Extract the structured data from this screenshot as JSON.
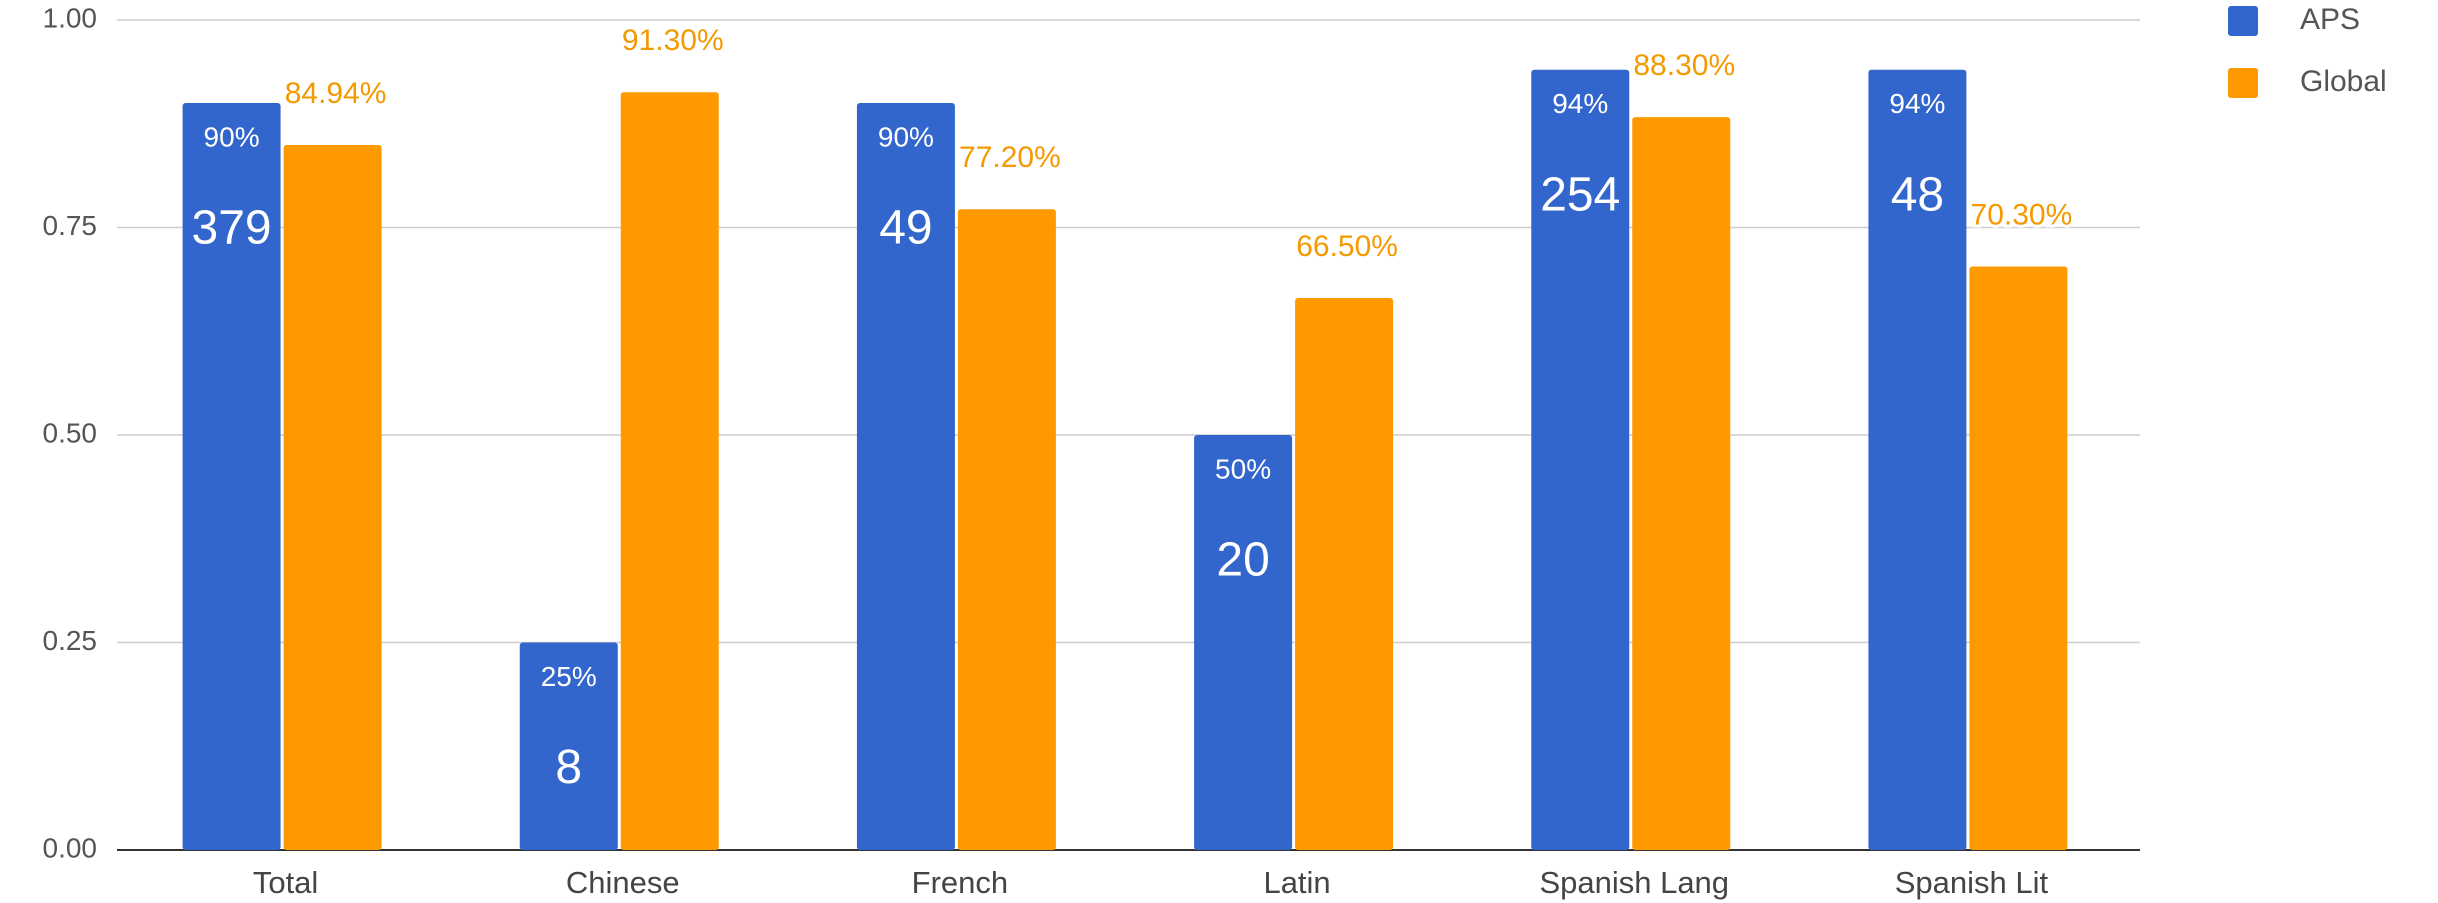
{
  "chart_data": {
    "type": "bar",
    "categories": [
      "Total",
      "Chinese",
      "French",
      "Latin",
      "Spanish Lang",
      "Spanish Lit"
    ],
    "series": [
      {
        "name": "APS",
        "color": "#3366cc",
        "values": [
          0.9,
          0.25,
          0.9,
          0.5,
          0.94,
          0.94
        ],
        "value_labels": [
          "90%",
          "25%",
          "90%",
          "50%",
          "94%",
          "94%"
        ],
        "counts": [
          379,
          8,
          49,
          20,
          254,
          48
        ]
      },
      {
        "name": "Global",
        "color": "#ff9900",
        "values": [
          0.8494,
          0.913,
          0.772,
          0.665,
          0.883,
          0.703
        ],
        "value_labels": [
          "84.94%",
          "91.30%",
          "77.20%",
          "66.50%",
          "88.30%",
          "70.30%"
        ]
      }
    ],
    "ylim": [
      0,
      1
    ],
    "yticks": [
      {
        "value": 0,
        "label": "0.00"
      },
      {
        "value": 0.25,
        "label": "0.25"
      },
      {
        "value": 0.5,
        "label": "0.50"
      },
      {
        "value": 0.75,
        "label": "0.75"
      },
      {
        "value": 1,
        "label": "1.00"
      }
    ],
    "grid": true,
    "legend": "top-right"
  }
}
